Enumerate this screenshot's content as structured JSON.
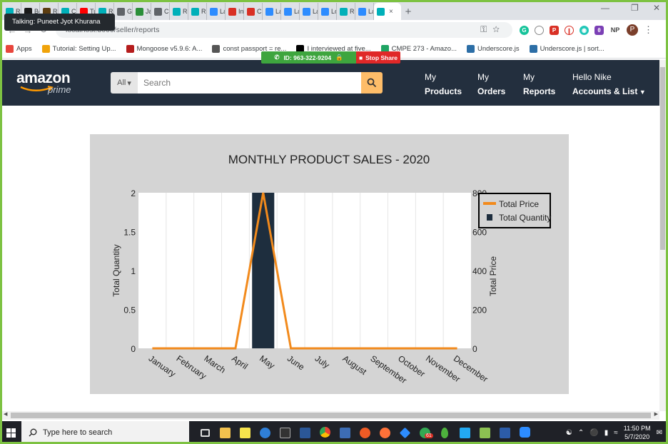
{
  "browser": {
    "tabs": [
      {
        "label": "Re",
        "color": "#00b0b9"
      },
      {
        "label": "Bc",
        "color": "#1a1a1a"
      },
      {
        "label": "Re",
        "color": "#5c3d11"
      },
      {
        "label": "Cr",
        "color": "#00b0b9"
      },
      {
        "label": "Tu",
        "color": "#ff0000"
      },
      {
        "label": "Re",
        "color": "#00b0b9"
      },
      {
        "label": "Gr",
        "color": "#5f6368"
      },
      {
        "label": "Jav",
        "color": "#2b8f3a"
      },
      {
        "label": "Cl",
        "color": "#5f6368"
      },
      {
        "label": "Re",
        "color": "#00b0b9"
      },
      {
        "label": "Re",
        "color": "#00b0b9"
      },
      {
        "label": "La",
        "color": "#2d8cff"
      },
      {
        "label": "Int",
        "color": "#d93025"
      },
      {
        "label": "Ch",
        "color": "#d93025"
      },
      {
        "label": "La",
        "color": "#2d8cff"
      },
      {
        "label": "La",
        "color": "#2d8cff"
      },
      {
        "label": "La",
        "color": "#2d8cff"
      },
      {
        "label": "Lo",
        "color": "#2d8cff"
      },
      {
        "label": "Re",
        "color": "#00b0b9"
      },
      {
        "label": "La",
        "color": "#2d8cff"
      }
    ],
    "active_tab_close": "×",
    "new_tab": "+",
    "url": "localhost:3000/seller/reports",
    "profile_initial": "P",
    "extension_np": "NP",
    "bookmarks": [
      {
        "label": "Apps",
        "color": "#e8453c"
      },
      {
        "label": "Tutorial: Setting Up...",
        "color": "#f0a30a"
      },
      {
        "label": "Mongoose v5.9.6: A...",
        "color": "#b51c1c"
      },
      {
        "label": "const passport = re...",
        "color": "#555555"
      },
      {
        "label": "I interviewed at five...",
        "color": "#000000"
      },
      {
        "label": "CMPE 273 - Amazo...",
        "color": "#1fa463"
      },
      {
        "label": "Underscore.js",
        "color": "#2c6ea6"
      },
      {
        "label": "Underscore.js | sort...",
        "color": "#2c6ea6"
      }
    ]
  },
  "talking_tooltip": "Talking: Puneet Jyot Khurana",
  "share_bar": {
    "id_text": "ID: 963-322-9204",
    "stop_label": "Stop Share"
  },
  "header": {
    "logo_text": "amazon",
    "logo_sub": "prime",
    "search_category": "All",
    "search_placeholder": "Search",
    "nav": [
      {
        "line1": "My",
        "line2": "Products"
      },
      {
        "line1": "My",
        "line2": "Orders"
      },
      {
        "line1": "My",
        "line2": "Reports"
      },
      {
        "line1": "Hello Nike",
        "line2": "Accounts & List"
      }
    ]
  },
  "chart_data": {
    "type": "bar",
    "title": "MONTHLY PRODUCT SALES - 2020",
    "categories": [
      "January",
      "February",
      "March",
      "April",
      "May",
      "June",
      "July",
      "August",
      "September",
      "October",
      "November",
      "December"
    ],
    "series": [
      {
        "name": "Total Quantity",
        "type": "bar",
        "axis": "left",
        "color": "#1e2e3e",
        "values": [
          0,
          0,
          0,
          0,
          2,
          0,
          0,
          0,
          0,
          0,
          0,
          0
        ]
      },
      {
        "name": "Total Price",
        "type": "line",
        "axis": "right",
        "color": "#f28a1c",
        "values": [
          0,
          0,
          0,
          0,
          800,
          0,
          0,
          0,
          0,
          0,
          0,
          0
        ]
      }
    ],
    "ylabel": "Total Quantity",
    "ylim": [
      0,
      2
    ],
    "yticks": [
      0,
      0.5,
      1,
      1.5,
      2
    ],
    "ylabel_right": "Total Price",
    "ylim_right": [
      0,
      800
    ],
    "yticks_right": [
      0,
      200,
      400,
      600,
      800
    ],
    "grid": "vertical",
    "legend_position": "top-right",
    "background": "#d4d4d4",
    "plot_background": "#ffffff"
  },
  "taskbar": {
    "search_placeholder": "Type here to search",
    "time": "11:50 PM",
    "date": "5/7/2020",
    "chrome_badge": "61"
  }
}
